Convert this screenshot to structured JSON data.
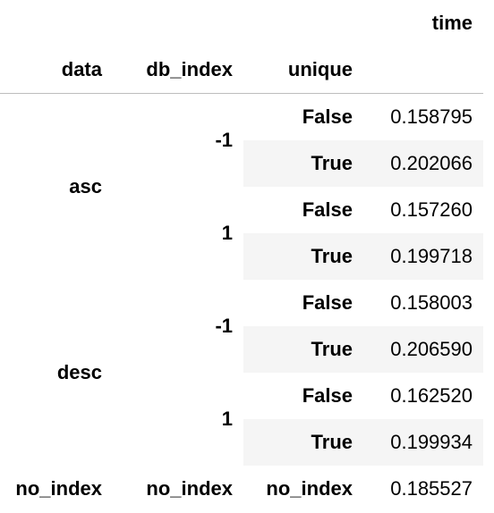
{
  "table": {
    "columns": [
      "time"
    ],
    "index_names": [
      "data",
      "db_index",
      "unique"
    ],
    "groups": [
      {
        "data": "asc",
        "subgroups": [
          {
            "db_index": "-1",
            "rows": [
              {
                "unique": "False",
                "time": "0.158795"
              },
              {
                "unique": "True",
                "time": "0.202066"
              }
            ]
          },
          {
            "db_index": "1",
            "rows": [
              {
                "unique": "False",
                "time": "0.157260"
              },
              {
                "unique": "True",
                "time": "0.199718"
              }
            ]
          }
        ]
      },
      {
        "data": "desc",
        "subgroups": [
          {
            "db_index": "-1",
            "rows": [
              {
                "unique": "False",
                "time": "0.158003"
              },
              {
                "unique": "True",
                "time": "0.206590"
              }
            ]
          },
          {
            "db_index": "1",
            "rows": [
              {
                "unique": "False",
                "time": "0.162520"
              },
              {
                "unique": "True",
                "time": "0.199934"
              }
            ]
          }
        ]
      }
    ],
    "last_row": {
      "data": "no_index",
      "db_index": "no_index",
      "unique": "no_index",
      "time": "0.185527"
    }
  }
}
